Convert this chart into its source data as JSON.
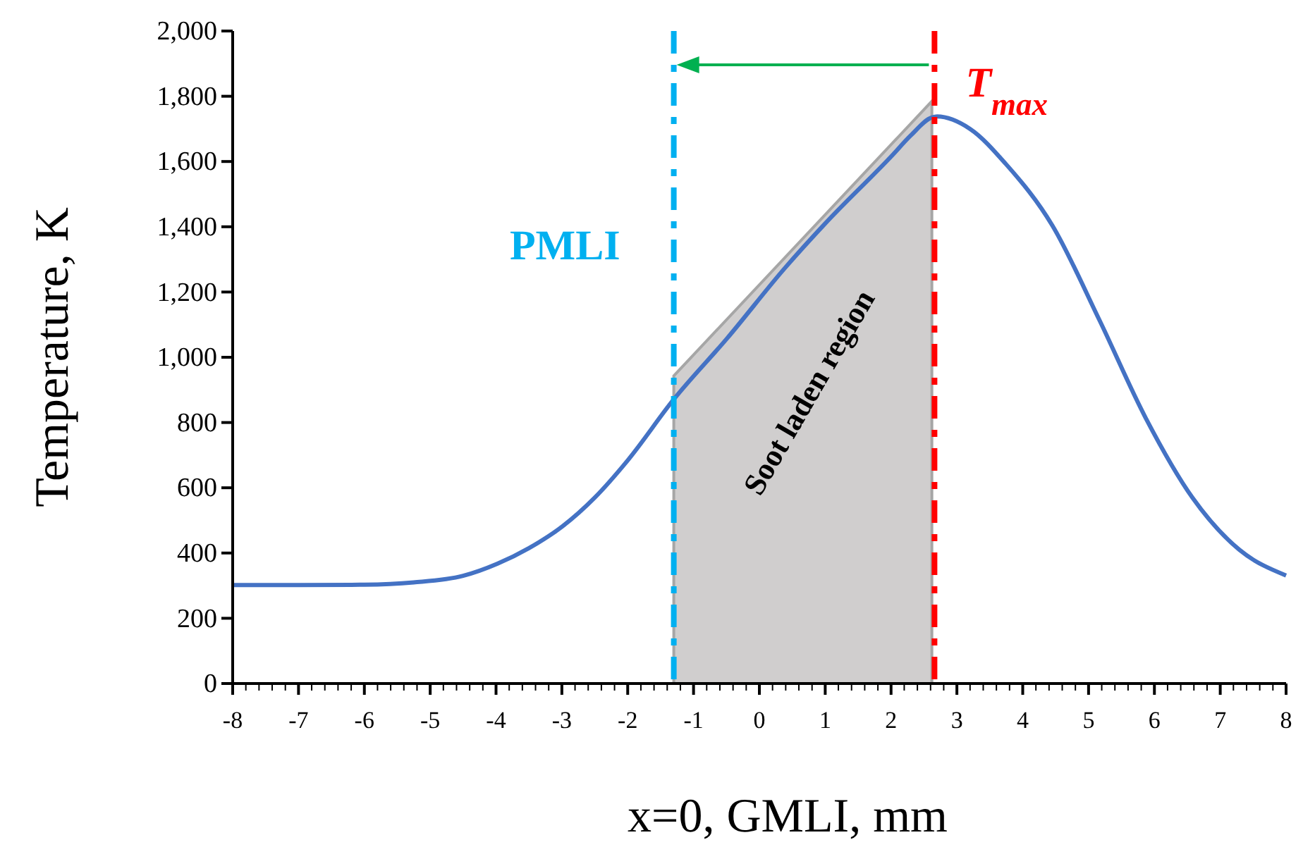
{
  "chart_data": {
    "type": "line",
    "xlabel": "x=0, GMLI, mm",
    "ylabel": "Temperature, K",
    "xlim": [
      -8,
      8
    ],
    "ylim": [
      0,
      2000
    ],
    "xticks": [
      -8,
      -7,
      -6,
      -5,
      -4,
      -3,
      -2,
      -1,
      0,
      1,
      2,
      3,
      4,
      5,
      6,
      7,
      8
    ],
    "yticks": [
      {
        "value": 0,
        "label": "0"
      },
      {
        "value": 200,
        "label": "200"
      },
      {
        "value": 400,
        "label": "400"
      },
      {
        "value": 600,
        "label": "600"
      },
      {
        "value": 800,
        "label": "800"
      },
      {
        "value": 1000,
        "label": "1,000"
      },
      {
        "value": 1200,
        "label": "1,200"
      },
      {
        "value": 1400,
        "label": "1,400"
      },
      {
        "value": 1600,
        "label": "1,600"
      },
      {
        "value": 1800,
        "label": "1,800"
      },
      {
        "value": 2000,
        "label": "2,000"
      }
    ],
    "grid": false,
    "marker": "none",
    "series": [
      {
        "type": "area",
        "color": "#d0cece",
        "x": [
          -1.3,
          2.62
        ],
        "values": [
          943,
          1785
        ]
      },
      {
        "color": "#4472c4",
        "line_style": "solid",
        "x": [
          -8,
          -7,
          -6,
          -5.25,
          -4.5,
          -3.98,
          -3.5,
          -2.99,
          -2.5,
          -2,
          -1.3,
          -0.49,
          0.39,
          1,
          2,
          2.3,
          2.62,
          2.7,
          3.2,
          3.75,
          4.45,
          5.16,
          5.87,
          6.58,
          7.29,
          8
        ],
        "values": [
          302,
          302,
          303,
          310,
          330,
          367,
          415,
          482,
          570,
          684,
          871,
          1058,
          1274,
          1410,
          1615,
          1680,
          1735,
          1738,
          1700,
          1591,
          1404,
          1116,
          813,
          569,
          410,
          331
        ]
      }
    ],
    "ref_lines": [
      {
        "axis": "x",
        "value": -1.3,
        "label": "PMLI",
        "color": "#00b0f0",
        "line_style": "dashdot"
      },
      {
        "axis": "x",
        "value": 2.66,
        "label": "T$_{max}$",
        "color": "#ff0000",
        "line_style": "dashdot"
      }
    ],
    "annotations": [
      "Soot laden region"
    ]
  }
}
